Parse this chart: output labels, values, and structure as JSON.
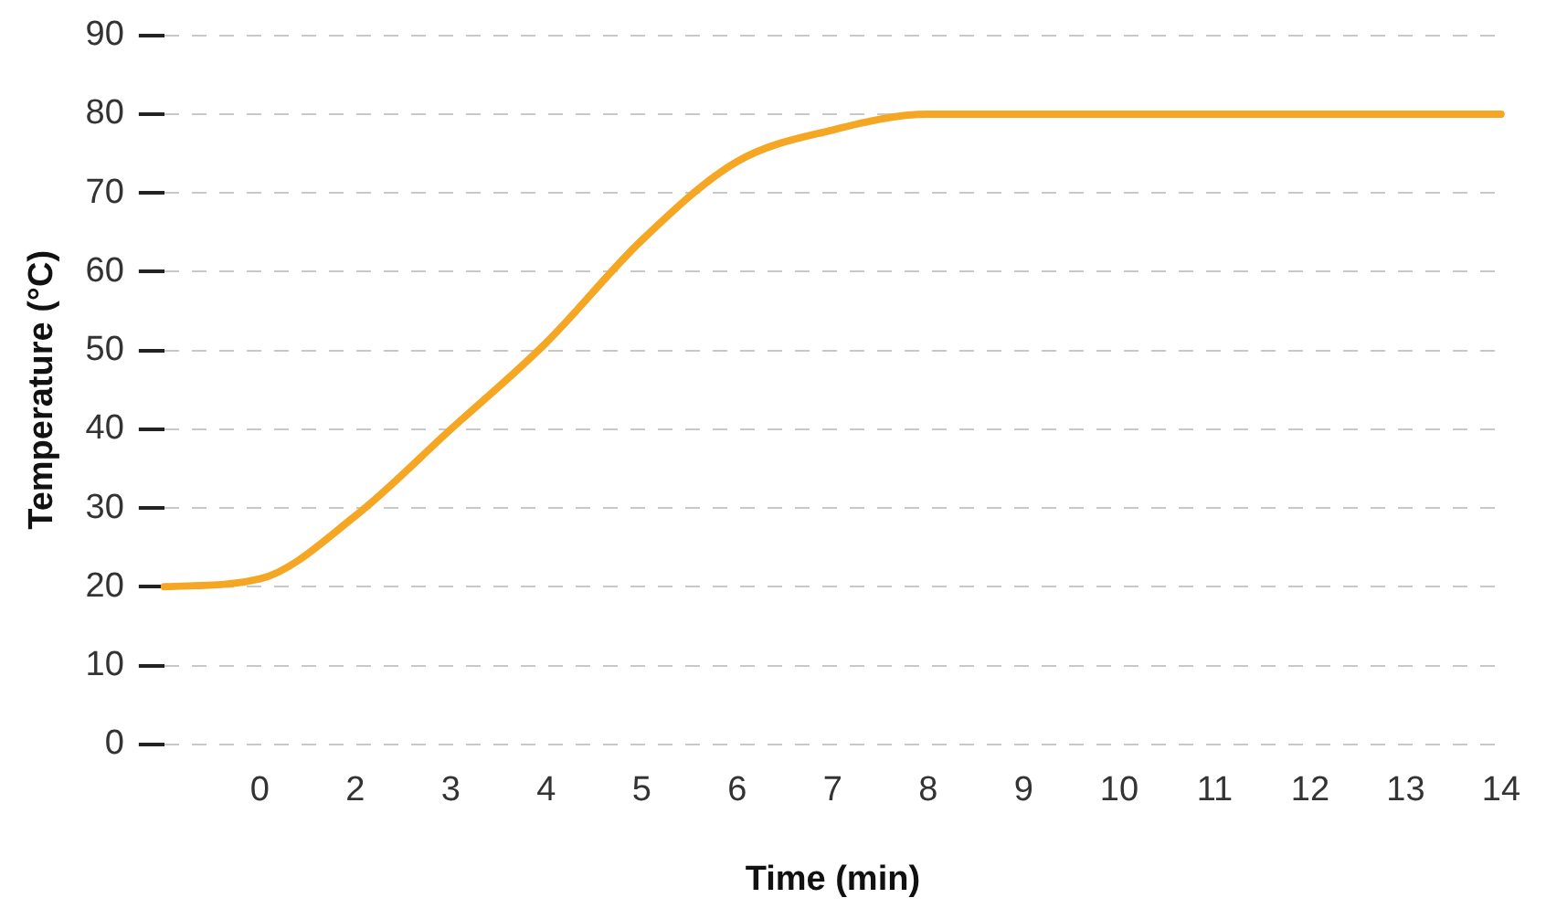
{
  "chart_data": {
    "type": "line",
    "xlabel": "Time (min)",
    "ylabel": "Temperature (°C)",
    "categories": [
      null,
      "0",
      "2",
      "3",
      "4",
      "5",
      "6",
      "7",
      "8",
      "9",
      "10",
      "11",
      "12",
      "13",
      "14"
    ],
    "series": [
      {
        "color": "#f5a623",
        "values": [
          20,
          21,
          29,
          40,
          51,
          64,
          74,
          78,
          80,
          80,
          80,
          80,
          80,
          80,
          80
        ]
      }
    ],
    "ylim": [
      0,
      90
    ],
    "yticks": [
      0,
      10,
      20,
      30,
      40,
      50,
      60,
      70,
      80,
      90
    ],
    "grid": "y",
    "legend": false,
    "marker": "none",
    "line_style": "solid"
  }
}
